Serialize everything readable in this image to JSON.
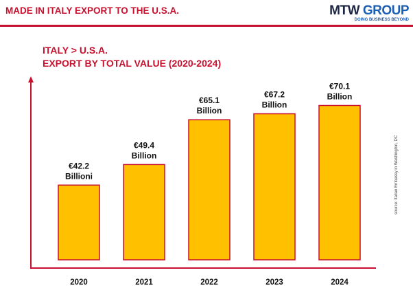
{
  "header": {
    "title": "MADE IN ITALY EXPORT TO THE U.S.A.",
    "logo_main": "MTW GROUP",
    "logo_tagline": "DOING BUSINESS BEYOND"
  },
  "colors": {
    "accent": "#c8102e",
    "bar_fill": "#ffc000",
    "bar_stroke": "#c8102e"
  },
  "chart_data": {
    "type": "bar",
    "title_line1": "ITALY > U.S.A.",
    "title_line2": "EXPORT BY TOTAL VALUE (2020-2024)",
    "categories": [
      "2020",
      "2021",
      "2022",
      "2023",
      "2024"
    ],
    "values": [
      42.2,
      49.4,
      65.1,
      67.2,
      70.1
    ],
    "data_labels": [
      [
        "€42.2",
        "Billioni"
      ],
      [
        "€49.4",
        "Billion"
      ],
      [
        "€65.1",
        "Billion"
      ],
      [
        "€67.2",
        "Billion"
      ],
      [
        "€70.1",
        "Billion"
      ]
    ],
    "xlabel": "",
    "ylabel": "",
    "grid": false,
    "source": "source: Italian Embassy in Washington, DC"
  }
}
